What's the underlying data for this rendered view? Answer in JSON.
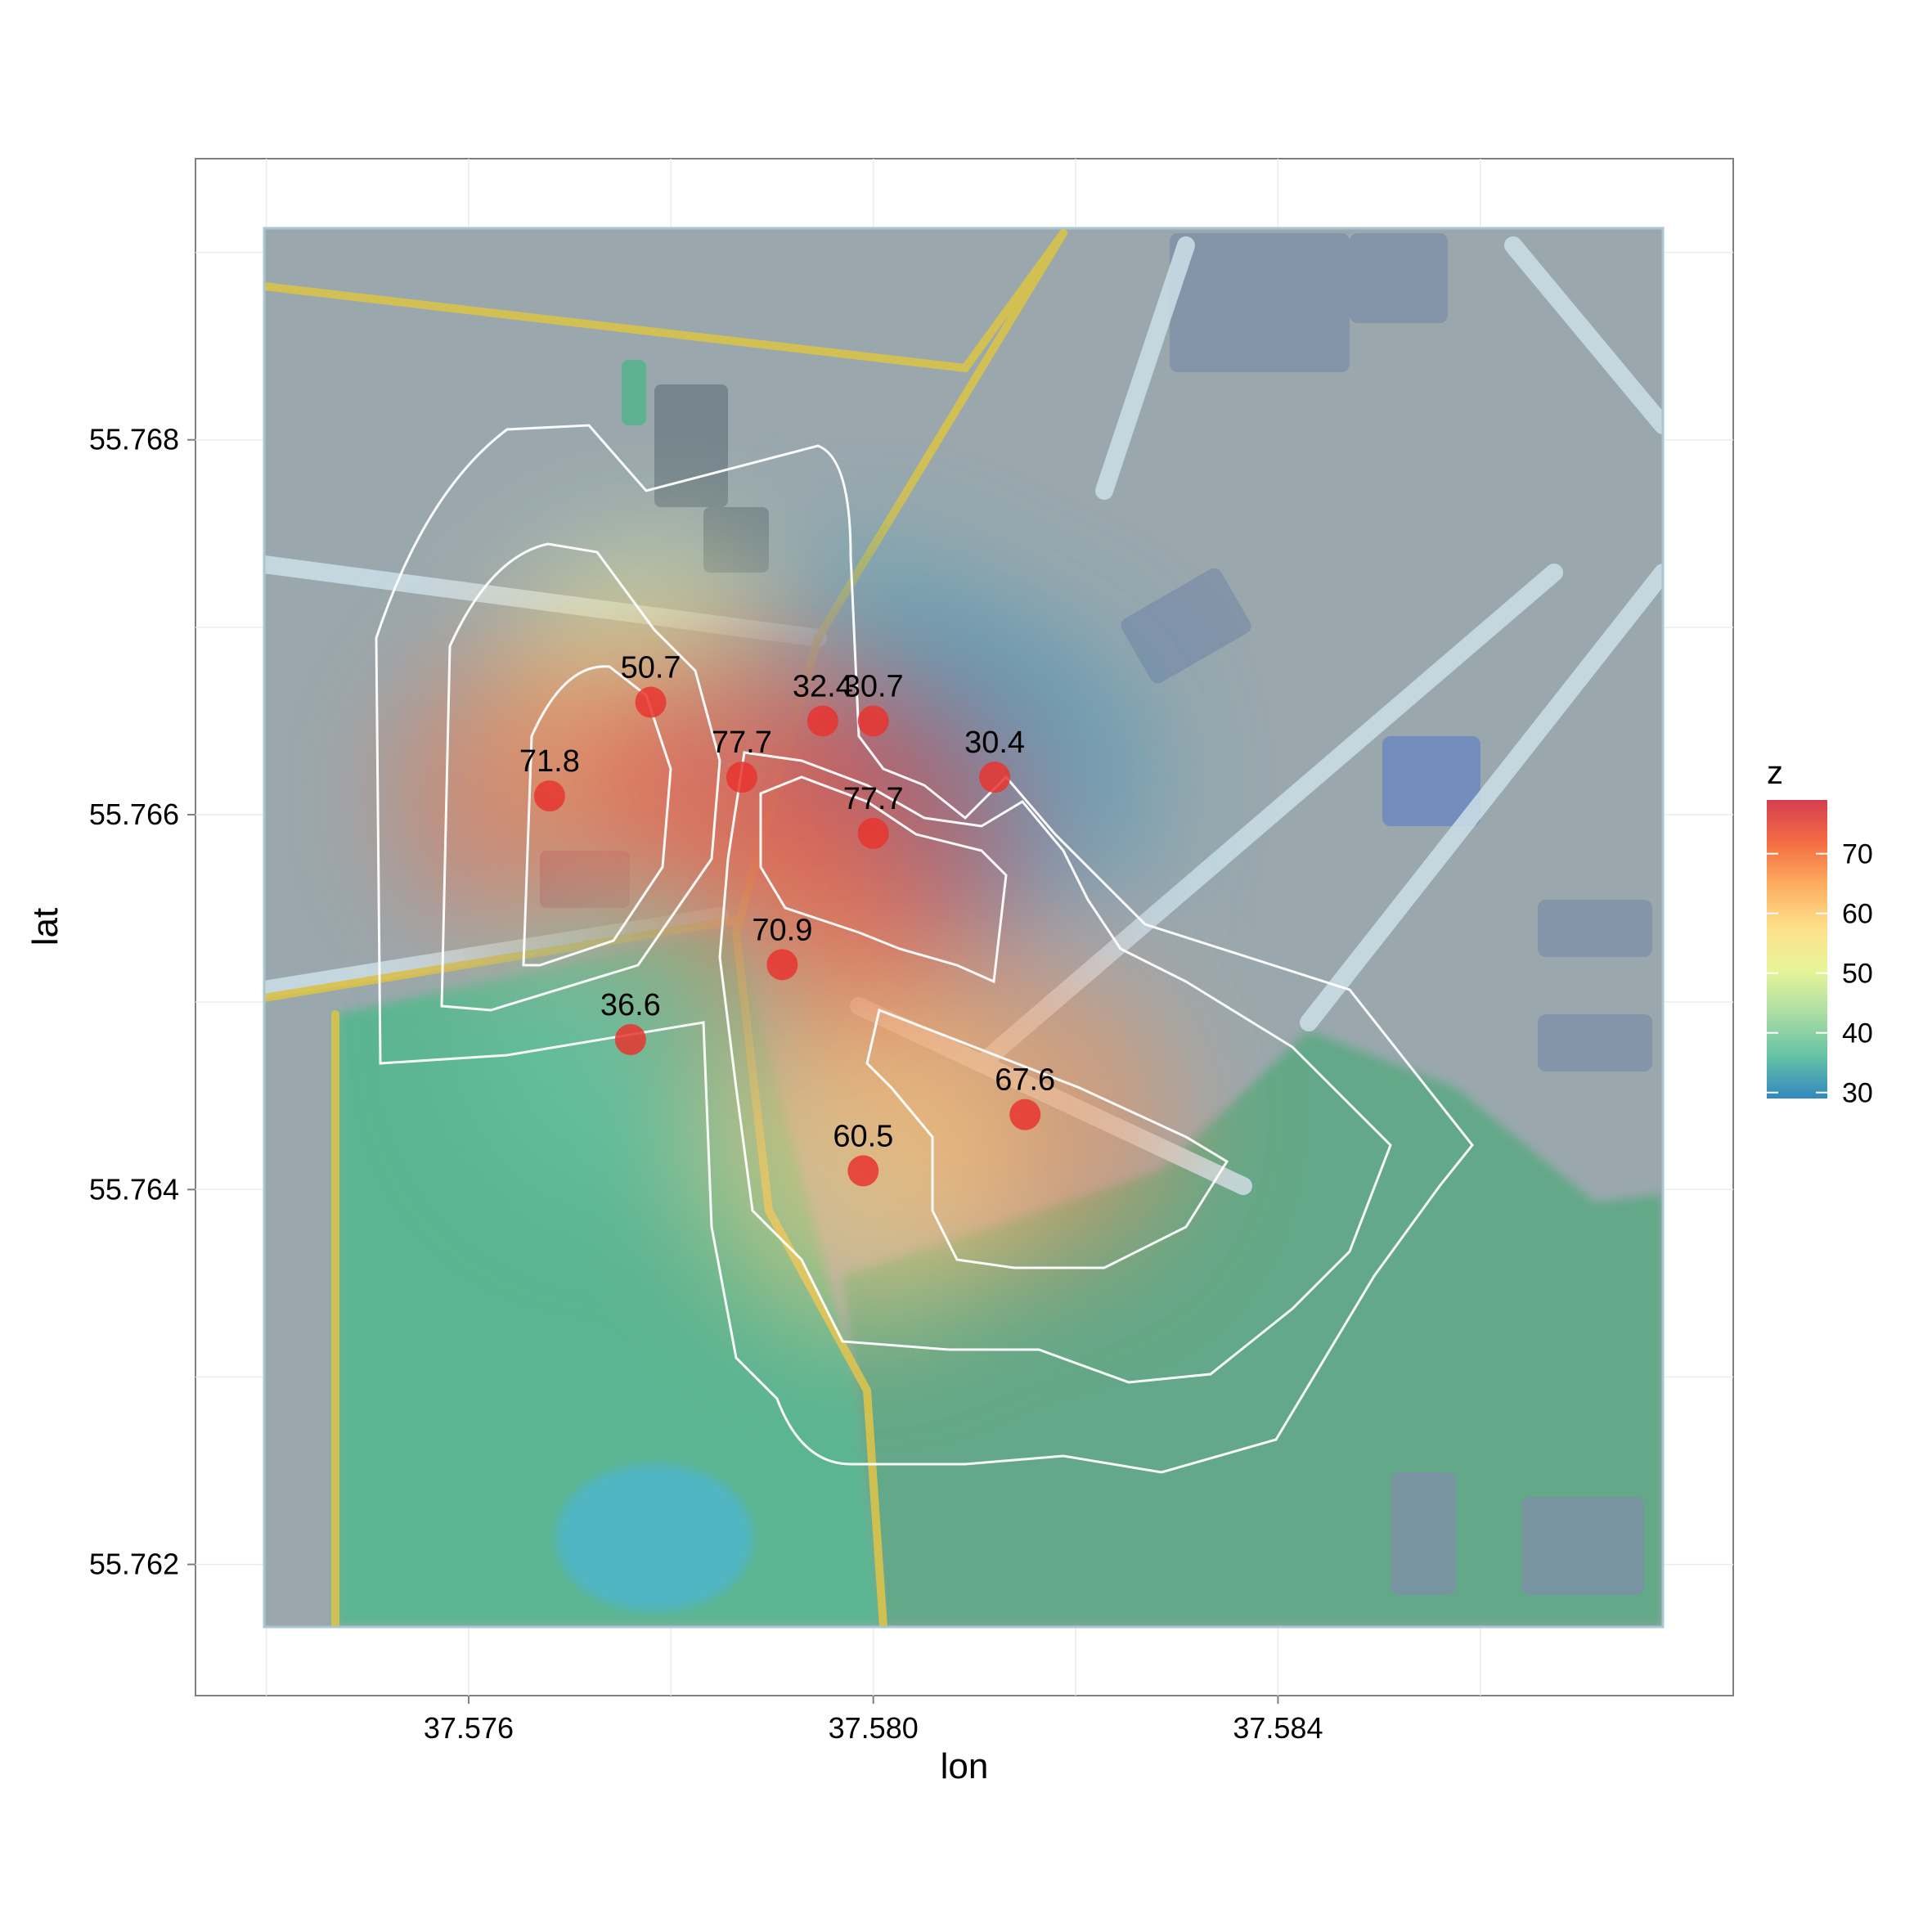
{
  "chart_data": {
    "type": "scatter",
    "title": "",
    "xlabel": "lon",
    "ylabel": "lat",
    "xlim": [
      37.5733,
      37.5885
    ],
    "ylim": [
      55.7613,
      55.7695
    ],
    "x_ticks": [
      "37.576",
      "37.580",
      "37.584"
    ],
    "x_tick_values": [
      37.576,
      37.58,
      37.584
    ],
    "y_ticks": [
      "55.762",
      "55.764",
      "55.766",
      "55.768"
    ],
    "y_tick_values": [
      55.762,
      55.764,
      55.766,
      55.768
    ],
    "grid": true,
    "background": "watercolor map tiles",
    "point_color": "#e8352f",
    "points": [
      {
        "lon": 37.58,
        "lat": 55.7665,
        "z": 30.7,
        "label": "30.7"
      },
      {
        "lon": 37.5795,
        "lat": 55.7665,
        "z": 32.4,
        "label": "32.4"
      },
      {
        "lon": 37.5812,
        "lat": 55.7662,
        "z": 30.4,
        "label": "30.4"
      },
      {
        "lon": 37.5778,
        "lat": 55.7666,
        "z": 50.7,
        "label": "50.7"
      },
      {
        "lon": 37.5768,
        "lat": 55.7661,
        "z": 71.8,
        "label": "71.8"
      },
      {
        "lon": 37.5787,
        "lat": 55.7662,
        "z": 77.7,
        "label": "77.7"
      },
      {
        "lon": 37.58,
        "lat": 55.7659,
        "z": 77.7,
        "label": "77.7"
      },
      {
        "lon": 37.5791,
        "lat": 55.7652,
        "z": 70.9,
        "label": "70.9"
      },
      {
        "lon": 37.5776,
        "lat": 55.7648,
        "z": 36.6,
        "label": "36.6"
      },
      {
        "lon": 37.5815,
        "lat": 55.7644,
        "z": 67.6,
        "label": "67.6"
      },
      {
        "lon": 37.5799,
        "lat": 55.7641,
        "z": 60.5,
        "label": "60.5"
      }
    ],
    "legend": {
      "title": "z",
      "position": "right",
      "labels": [
        "70",
        "60",
        "50",
        "40",
        "30"
      ],
      "values": [
        70,
        60,
        50,
        40,
        30
      ],
      "range": [
        29,
        79
      ],
      "colors": [
        "#3288bd",
        "#66c2a5",
        "#abdda4",
        "#e6f598",
        "#fee08b",
        "#fdae61",
        "#f46d43",
        "#d53e4f"
      ]
    }
  }
}
